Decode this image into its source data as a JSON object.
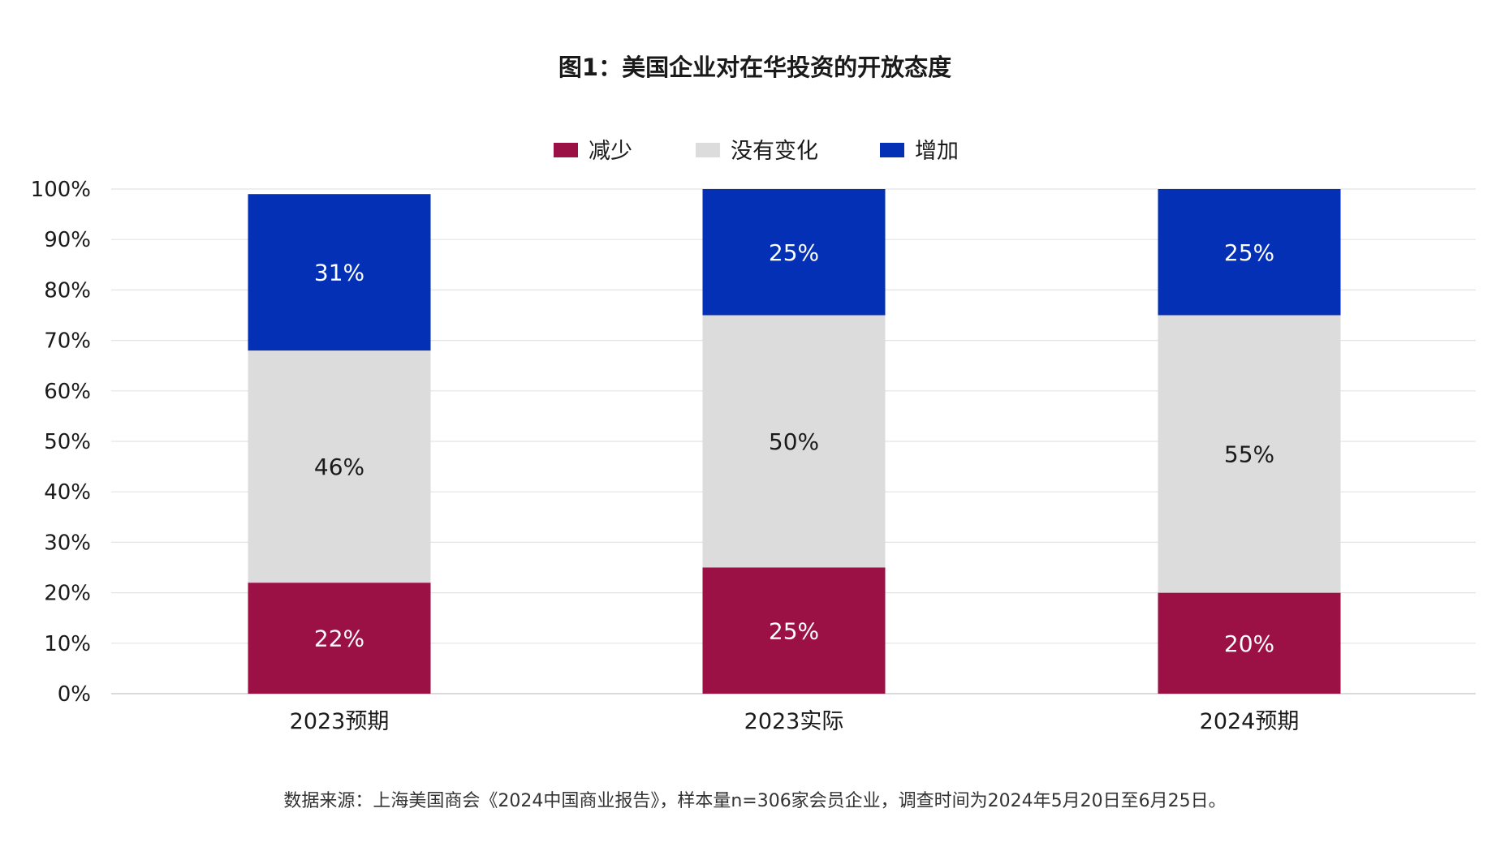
{
  "chart_data": {
    "type": "bar",
    "stacked": true,
    "title": "图1：美国企业对在华投资的开放态度",
    "categories": [
      "2023预期",
      "2023实际",
      "2024预期"
    ],
    "series": [
      {
        "name": "减少",
        "color": "#9b1045",
        "label_color": "#ffffff",
        "values": [
          22,
          25,
          20
        ]
      },
      {
        "name": "没有变化",
        "color": "#dddcdd",
        "label_color": "#1a1a1a",
        "values": [
          46,
          50,
          55
        ]
      },
      {
        "name": "增加",
        "color": "#0330b5",
        "label_color": "#ffffff",
        "values": [
          31,
          25,
          25
        ]
      }
    ],
    "value_suffix": "%",
    "ylim": [
      0,
      100
    ],
    "yticks": [
      "0%",
      "10%",
      "20%",
      "30%",
      "40%",
      "50%",
      "60%",
      "70%",
      "80%",
      "90%",
      "100%"
    ],
    "grid": true,
    "legend_position": "top-center",
    "source_note": "数据来源：上海美国商会《2024中国商业报告》，样本量n=306家会员企业，调查时间为2024年5月20日至6月25日。"
  }
}
